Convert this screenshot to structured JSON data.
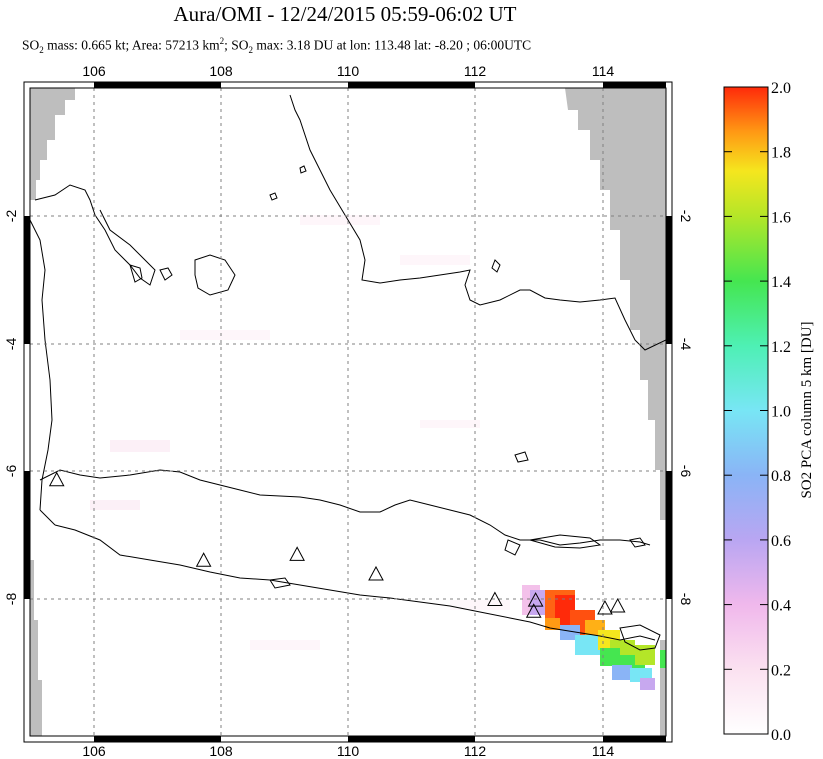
{
  "header": {
    "title": "Aura/OMI - 12/24/2015 05:59-06:02 UT",
    "subtitle_parts": {
      "so2_prefix": "SO",
      "sub2": "2",
      "mass_text": " mass: 0.665 kt; Area: 57213 km",
      "sup2": "2",
      "sep": "; SO",
      "sub2b": "2",
      "max_text": " max: 3.18 DU at lon: 113.48 lat: -8.20 ; 06:00UTC"
    }
  },
  "map": {
    "lon_range": [
      105.0,
      115.0
    ],
    "lat_range": [
      -10.0,
      -0.1
    ],
    "lon_ticks": [
      "106",
      "108",
      "110",
      "112",
      "114"
    ],
    "lat_ticks": [
      "-2",
      "-4",
      "-6",
      "-8"
    ],
    "land_color": "#000000",
    "nodata_color": "#bebebe",
    "volcanoes": [
      {
        "lon": 105.42,
        "lat": -6.1
      },
      {
        "lon": 107.73,
        "lat": -7.33
      },
      {
        "lon": 109.2,
        "lat": -7.24
      },
      {
        "lon": 110.44,
        "lat": -7.54
      },
      {
        "lon": 112.31,
        "lat": -7.93
      },
      {
        "lon": 112.92,
        "lat": -8.11
      },
      {
        "lon": 112.95,
        "lat": -7.94
      },
      {
        "lon": 114.04,
        "lat": -8.06
      },
      {
        "lon": 114.24,
        "lat": -8.03
      }
    ],
    "so2_plume_peak": {
      "lon": 113.48,
      "lat": -8.2,
      "value_du": 3.18
    }
  },
  "colorbar": {
    "label": "SO2 PCA column 5 km [DU]",
    "ticks": [
      "0.0",
      "0.2",
      "0.4",
      "0.6",
      "0.8",
      "1.0",
      "1.2",
      "1.4",
      "1.6",
      "1.8",
      "2.0"
    ],
    "range": [
      0.0,
      2.0
    ]
  }
}
